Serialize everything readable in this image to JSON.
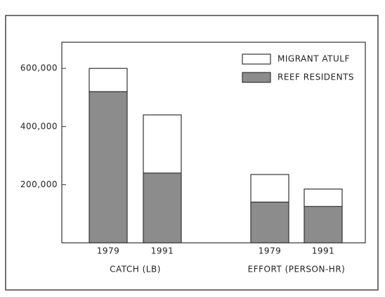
{
  "chart_data": {
    "type": "stacked_bar",
    "categories": [
      "1979",
      "1991",
      "1979",
      "1991"
    ],
    "group_labels": [
      "CATCH (LB)",
      "EFFORT (PERSON-HR)"
    ],
    "series": [
      {
        "name": "REEF RESIDENTS",
        "color": "#8c8c8c",
        "values": [
          520000,
          240000,
          140000,
          125000
        ]
      },
      {
        "name": "MIGRANT ATULF",
        "color": "#ffffff",
        "values": [
          80000,
          200000,
          95000,
          60000
        ]
      }
    ],
    "ylim": [
      0,
      690000
    ],
    "yticks": [
      {
        "value": 200000,
        "label": "200,000"
      },
      {
        "value": 400000,
        "label": "400,000"
      },
      {
        "value": 600000,
        "label": "600,000"
      }
    ]
  }
}
